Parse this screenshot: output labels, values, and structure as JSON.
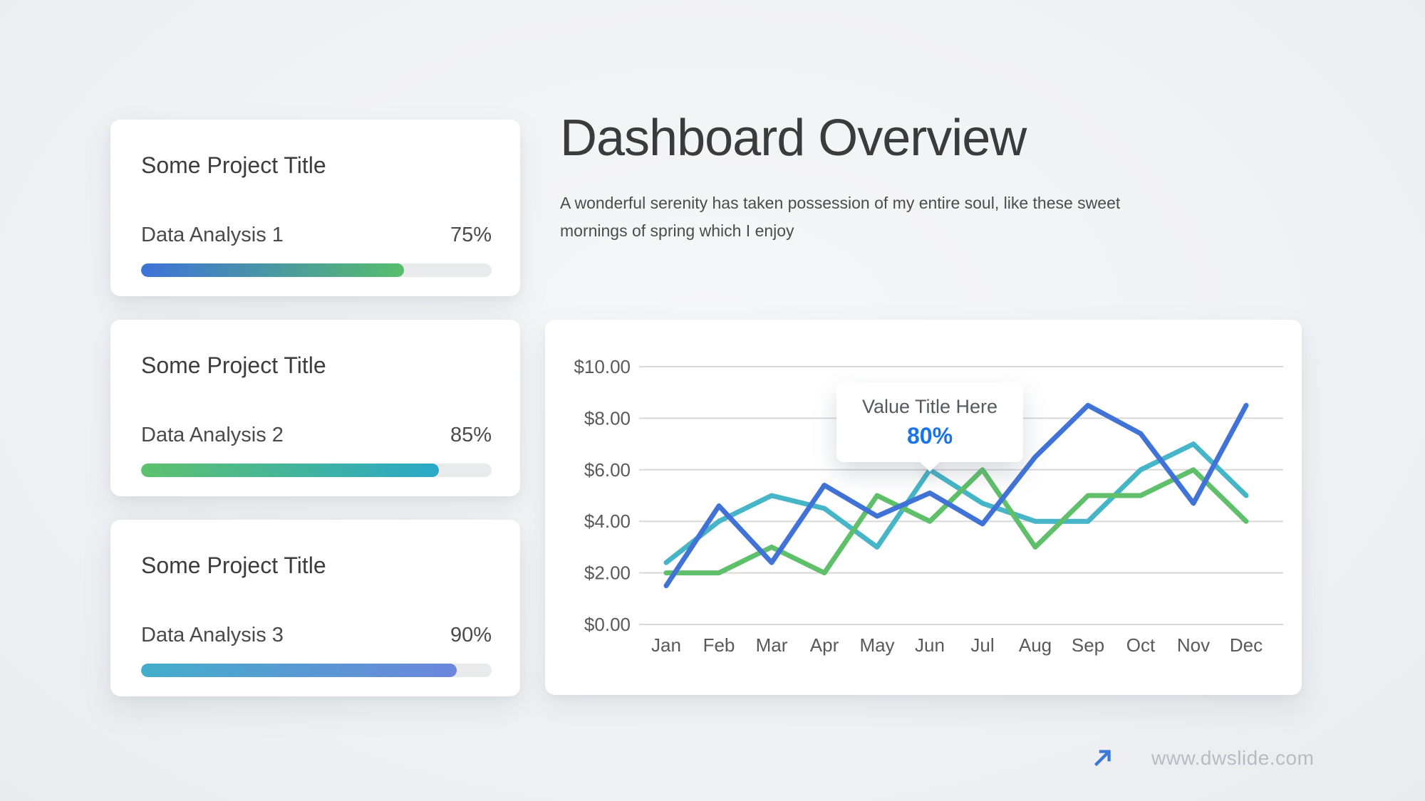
{
  "slide": {
    "background": "#f1f2f4"
  },
  "header": {
    "title": "Dashboard Overview",
    "subtitle": "A wonderful serenity has taken possession of my entire soul, like these sweet mornings of spring which I enjoy"
  },
  "cards": [
    {
      "title": "Some Project Title",
      "label": "Data Analysis 1",
      "percent": "75%",
      "value": 75,
      "bar_gradient": [
        "#3e72d8",
        "#57bd6c"
      ]
    },
    {
      "title": "Some Project Title",
      "label": "Data Analysis 2",
      "percent": "85%",
      "value": 85,
      "bar_gradient": [
        "#5ec16d",
        "#2aa8c8"
      ]
    },
    {
      "title": "Some Project Title",
      "label": "Data Analysis 3",
      "percent": "90%",
      "value": 90,
      "bar_gradient": [
        "#44aeca",
        "#6c86dc"
      ]
    }
  ],
  "chart_data": {
    "type": "line",
    "categories": [
      "Jan",
      "Feb",
      "Mar",
      "Apr",
      "May",
      "Jun",
      "Jul",
      "Aug",
      "Sep",
      "Oct",
      "Nov",
      "Dec"
    ],
    "series": [
      {
        "name": "series-blue",
        "color": "#4173d6",
        "values": [
          1.5,
          4.6,
          2.4,
          5.4,
          4.2,
          5.1,
          3.9,
          6.5,
          8.5,
          7.4,
          4.7,
          8.5
        ]
      },
      {
        "name": "series-green",
        "color": "#5fbf6b",
        "values": [
          2,
          2,
          3,
          2,
          5,
          4,
          6,
          3,
          5,
          5,
          6,
          4
        ]
      },
      {
        "name": "series-teal",
        "color": "#45b5c7",
        "values": [
          2.4,
          4,
          5,
          4.5,
          3,
          6,
          4.7,
          4,
          4,
          6,
          7,
          5
        ]
      }
    ],
    "ylim": [
      0,
      10
    ],
    "y_ticks": [
      "$10.00",
      "$8.00",
      "$6.00",
      "$4.00",
      "$2.00",
      "$0.00"
    ],
    "grid": true,
    "legend": "none",
    "title": "",
    "xlabel": "",
    "ylabel": "",
    "tooltip": {
      "title": "Value Title Here",
      "value": "80%",
      "anchor_category": "Jun",
      "anchor_series": "series-teal"
    }
  },
  "footer": {
    "website": "www.dwslide.com"
  },
  "colors": {
    "accent_blue": "#1a73e8",
    "grid_line": "#d8d8d8",
    "axis_label": "#595959",
    "progress_track": "#e9eaeb",
    "footer_text": "#b8bcc2",
    "footer_arrow": "#3c78d8"
  }
}
